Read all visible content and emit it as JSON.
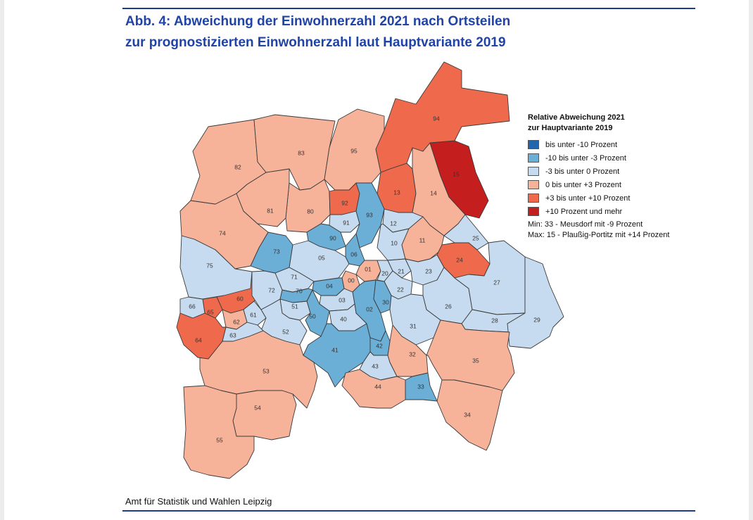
{
  "figure": {
    "title_line1": "Abb. 4: Abweichung der Einwohnerzahl 2021 nach Ortsteilen",
    "title_line2": "zur prognostizierten Einwohnerzahl laut Hauptvariante 2019",
    "source": "Amt für Statistik und Wahlen Leipzig"
  },
  "legend": {
    "title_line1": "Relative Abweichung 2021",
    "title_line2": "zur Hauptvariante 2019",
    "classes": [
      {
        "key": "c1",
        "label": "bis unter -10 Prozent",
        "color": "#2166ac"
      },
      {
        "key": "c2",
        "label": "-10 bis unter -3 Prozent",
        "color": "#6baed6"
      },
      {
        "key": "c3",
        "label": "-3 bis unter 0 Prozent",
        "color": "#c6dbef"
      },
      {
        "key": "c4",
        "label": "0 bis unter +3 Prozent",
        "color": "#f7b39a"
      },
      {
        "key": "c5",
        "label": "+3 bis unter +10 Prozent",
        "color": "#ef6a4c"
      },
      {
        "key": "c6",
        "label": "+10 Prozent und mehr",
        "color": "#c41e1e"
      }
    ],
    "min": "Min: 33 - Meusdorf mit -9 Prozent",
    "max": "Max: 15 - Plaußig-Portitz mit +14 Prozent"
  },
  "districts": [
    {
      "id": "00",
      "class": "c4"
    },
    {
      "id": "01",
      "class": "c4"
    },
    {
      "id": "02",
      "class": "c2"
    },
    {
      "id": "03",
      "class": "c3"
    },
    {
      "id": "04",
      "class": "c2"
    },
    {
      "id": "05",
      "class": "c3"
    },
    {
      "id": "06",
      "class": "c2"
    },
    {
      "id": "10",
      "class": "c3"
    },
    {
      "id": "11",
      "class": "c4"
    },
    {
      "id": "12",
      "class": "c3"
    },
    {
      "id": "13",
      "class": "c5"
    },
    {
      "id": "14",
      "class": "c4"
    },
    {
      "id": "15",
      "class": "c6"
    },
    {
      "id": "20",
      "class": "c3"
    },
    {
      "id": "21",
      "class": "c3"
    },
    {
      "id": "22",
      "class": "c3"
    },
    {
      "id": "23",
      "class": "c3"
    },
    {
      "id": "24",
      "class": "c5"
    },
    {
      "id": "25",
      "class": "c3"
    },
    {
      "id": "26",
      "class": "c3"
    },
    {
      "id": "27",
      "class": "c3"
    },
    {
      "id": "28",
      "class": "c3"
    },
    {
      "id": "29",
      "class": "c3"
    },
    {
      "id": "30",
      "class": "c2"
    },
    {
      "id": "31",
      "class": "c3"
    },
    {
      "id": "32",
      "class": "c4"
    },
    {
      "id": "33",
      "class": "c2"
    },
    {
      "id": "34",
      "class": "c4"
    },
    {
      "id": "35",
      "class": "c4"
    },
    {
      "id": "40",
      "class": "c3"
    },
    {
      "id": "41",
      "class": "c2"
    },
    {
      "id": "42",
      "class": "c2"
    },
    {
      "id": "43",
      "class": "c3"
    },
    {
      "id": "44",
      "class": "c4"
    },
    {
      "id": "50",
      "class": "c2"
    },
    {
      "id": "51",
      "class": "c3"
    },
    {
      "id": "52",
      "class": "c3"
    },
    {
      "id": "53",
      "class": "c4"
    },
    {
      "id": "54",
      "class": "c4"
    },
    {
      "id": "55",
      "class": "c4"
    },
    {
      "id": "60",
      "class": "c5"
    },
    {
      "id": "61",
      "class": "c3"
    },
    {
      "id": "62",
      "class": "c4"
    },
    {
      "id": "63",
      "class": "c3"
    },
    {
      "id": "64",
      "class": "c5"
    },
    {
      "id": "65",
      "class": "c5"
    },
    {
      "id": "66",
      "class": "c3"
    },
    {
      "id": "70",
      "class": "c2"
    },
    {
      "id": "71",
      "class": "c3"
    },
    {
      "id": "72",
      "class": "c3"
    },
    {
      "id": "73",
      "class": "c2"
    },
    {
      "id": "74",
      "class": "c4"
    },
    {
      "id": "75",
      "class": "c3"
    },
    {
      "id": "80",
      "class": "c4"
    },
    {
      "id": "81",
      "class": "c4"
    },
    {
      "id": "82",
      "class": "c4"
    },
    {
      "id": "83",
      "class": "c4"
    },
    {
      "id": "90",
      "class": "c2"
    },
    {
      "id": "91",
      "class": "c3"
    },
    {
      "id": "92",
      "class": "c5"
    },
    {
      "id": "93",
      "class": "c2"
    },
    {
      "id": "94",
      "class": "c5"
    },
    {
      "id": "95",
      "class": "c4"
    }
  ]
}
